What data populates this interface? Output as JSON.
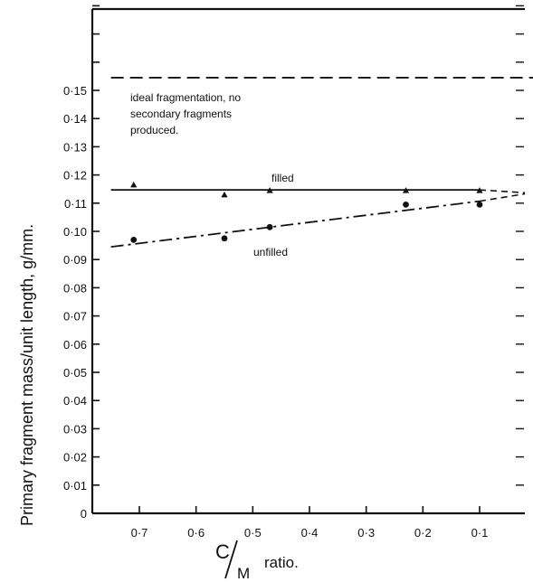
{
  "chart_data": {
    "type": "line",
    "title": "",
    "ylabel": "Primary fragment mass/unit length,  g/mm.",
    "xlabel": {
      "numerator": "C",
      "denominator": "M",
      "suffix": "ratio."
    },
    "x_reversed": true,
    "xlim": [
      0.78,
      0.0
    ],
    "ylim": [
      0.0,
      0.18
    ],
    "x_ticks": [
      0.7,
      0.6,
      0.5,
      0.4,
      0.3,
      0.2,
      0.1
    ],
    "x_tick_labels": [
      "0·7",
      "0·6",
      "0·5",
      "0·4",
      "0·3",
      "0·2",
      "0·1"
    ],
    "y_ticks": [
      0.0,
      0.01,
      0.02,
      0.03,
      0.04,
      0.05,
      0.06,
      0.07,
      0.08,
      0.09,
      0.1,
      0.11,
      0.12,
      0.13,
      0.14,
      0.15
    ],
    "y_tick_labels": [
      "0",
      "0·01",
      "0·02",
      "0·03",
      "0·04",
      "0·05",
      "0·06",
      "0·07",
      "0·08",
      "0·09",
      "0·10",
      "0·11",
      "0·12",
      "0·13",
      "0·14",
      "0·15"
    ],
    "grid": false,
    "series": [
      {
        "name": "filled",
        "line_style": "solid",
        "marker": "triangle",
        "x": [
          0.71,
          0.55,
          0.47,
          0.23,
          0.1
        ],
        "y": [
          0.1165,
          0.113,
          0.1145,
          0.1145,
          0.1145
        ],
        "fit": {
          "x": [
            0.75,
            0.1
          ],
          "y": [
            0.1147,
            0.1147
          ]
        },
        "extension": {
          "x": [
            0.1,
            0.02
          ],
          "y": [
            0.1147,
            0.1137
          ]
        }
      },
      {
        "name": "unfilled",
        "line_style": "dash-dot",
        "marker": "circle",
        "x": [
          0.71,
          0.55,
          0.47,
          0.23,
          0.1
        ],
        "y": [
          0.097,
          0.0975,
          0.1015,
          0.1095,
          0.1095
        ],
        "fit": {
          "x": [
            0.75,
            0.1
          ],
          "y": [
            0.0945,
            0.1107
          ]
        },
        "extension": {
          "x": [
            0.1,
            0.02
          ],
          "y": [
            0.1107,
            0.1133
          ]
        }
      },
      {
        "name": "ideal",
        "line_style": "dashed",
        "marker": "none",
        "x": [
          0.75,
          0.0
        ],
        "y": [
          0.1545,
          0.1545
        ]
      }
    ],
    "annotations": [
      {
        "id": "ideal",
        "lines": [
          "ideal fragmentation, no",
          "secondary fragments",
          "produced."
        ]
      },
      {
        "id": "filled",
        "text": "filled"
      },
      {
        "id": "unfilled",
        "text": "unfilled"
      }
    ]
  }
}
